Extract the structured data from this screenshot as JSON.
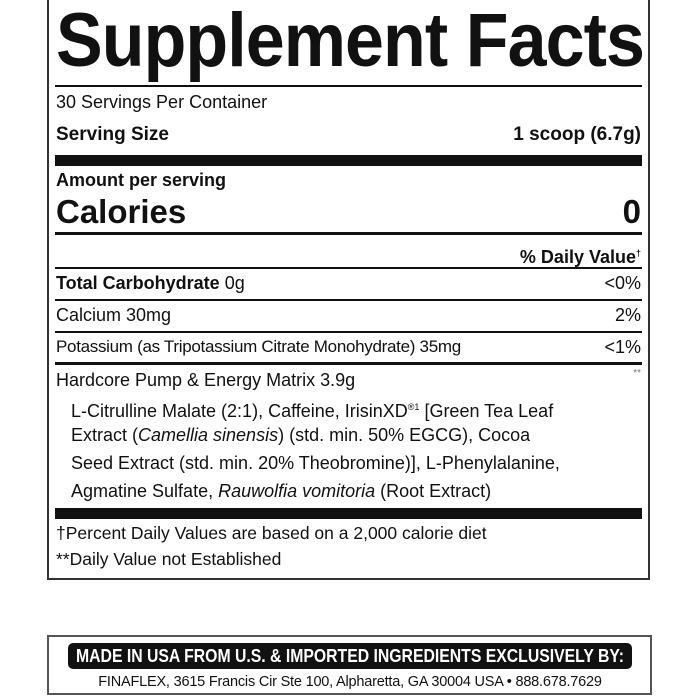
{
  "title": "Supplement Facts",
  "servings_per_container": "30 Servings Per Container",
  "serving_size": {
    "label": "Serving Size",
    "value": "1 scoop (6.7g)"
  },
  "amount_per_serving": "Amount per serving",
  "calories": {
    "label": "Calories",
    "value": "0"
  },
  "daily_value_header": "% Daily Value",
  "dagger": "†",
  "rows": [
    {
      "name": "Total Carbohydrate",
      "amount": "0g",
      "dv": "<0%"
    },
    {
      "name": "Calcium",
      "amount": "30mg",
      "dv": "2%"
    },
    {
      "name": "Potassium (as Tripotassium Citrate Monohydrate)",
      "amount": "35mg",
      "dv": "<1%"
    }
  ],
  "matrix": {
    "name": "Hardcore Pump & Energy Matrix 3.9g",
    "dv": "**",
    "line1_a": "L-Citrulline Malate (2:1), Caffeine, IrisinXD",
    "line1_sup": "®1",
    "line1_b": " [Green Tea Leaf",
    "line2_a": "Extract (",
    "line2_i": "Camellia sinensis",
    "line2_b": ") (std. min. 50% EGCG), Cocoa",
    "line3": "Seed Extract (std. min. 20% Theobromine)], L-Phenylalanine,",
    "line4_a": "Agmatine Sulfate, ",
    "line4_i": "Rauwolfia vomitoria",
    "line4_b": " (Root Extract)"
  },
  "footnotes": [
    "†Percent Daily Values are based on a 2,000 calorie diet",
    "**Daily Value not Established"
  ],
  "banner": "MADE IN USA FROM U.S. & IMPORTED INGREDIENTS EXCLUSIVELY BY:",
  "address": "FINAFLEX, 3615 Francis Cir Ste 100, Alpharetta, GA 30004 USA • 888.678.7629"
}
